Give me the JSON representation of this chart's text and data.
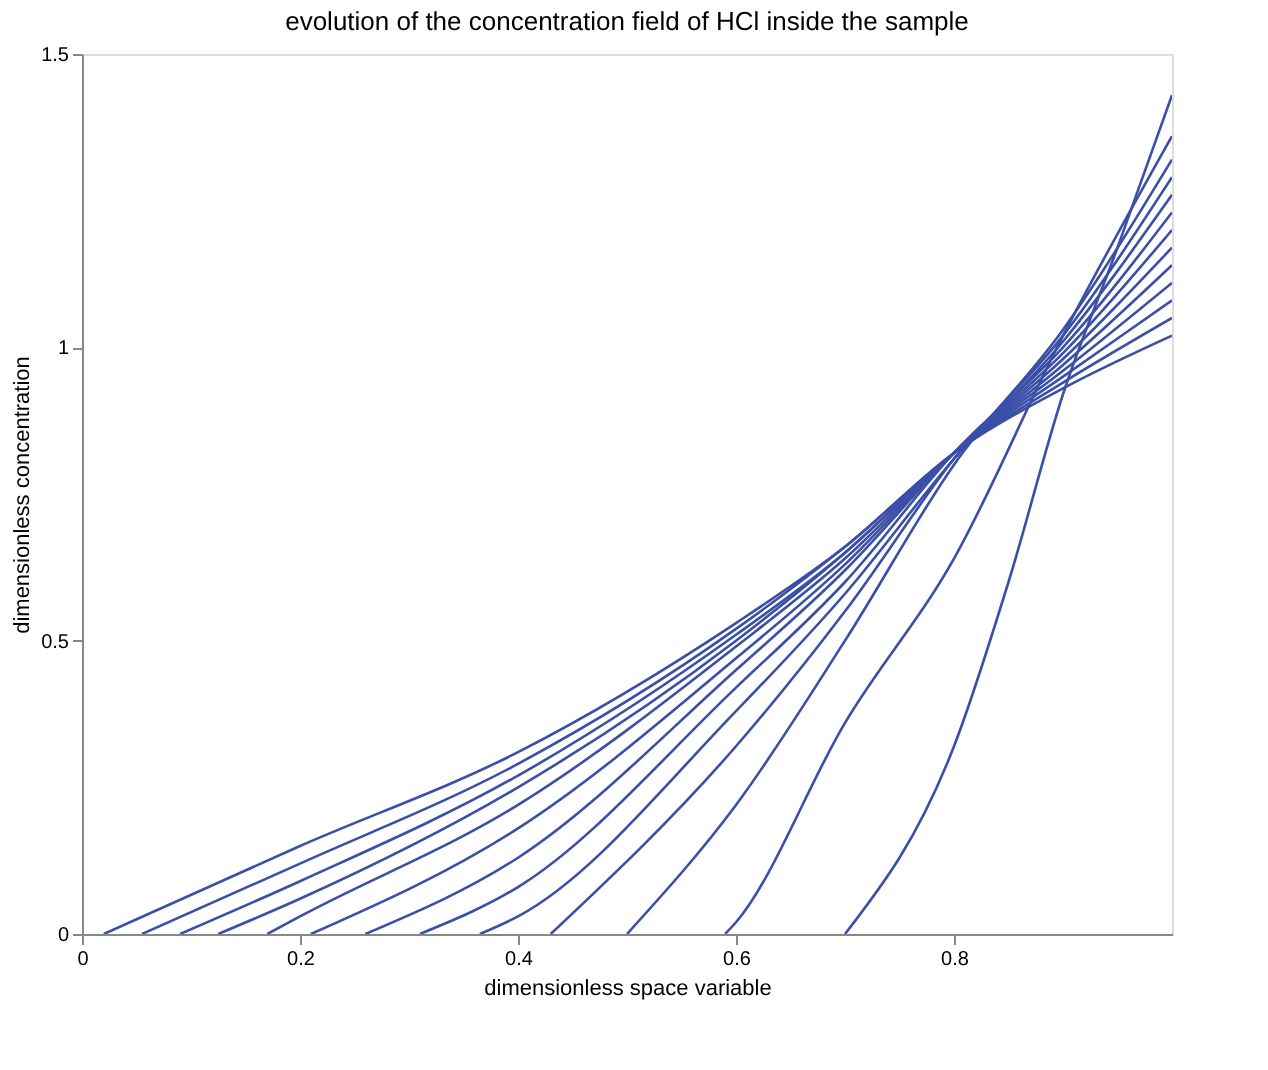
{
  "chart_data": {
    "type": "line",
    "title": "evolution of the concentration field of HCl inside the sample",
    "xlabel": "dimensionless space variable",
    "ylabel": "dimensionless concentration",
    "xlim": [
      0,
      1
    ],
    "ylim": [
      0,
      1.5
    ],
    "xticks": [
      0,
      0.2,
      0.4,
      0.6,
      0.8
    ],
    "yticks": [
      0,
      0.5,
      1,
      1.5
    ],
    "grid": false,
    "legend": false,
    "marker": "none",
    "line_style": "solid",
    "series": [
      {
        "color": "#3a4fa8",
        "x": [
          0.02,
          0.2,
          0.4,
          0.6,
          0.7,
          0.8,
          0.9,
          1.0
        ],
        "values": [
          0,
          0.15,
          0.31,
          0.53,
          0.66,
          0.82,
          0.93,
          1.02
        ]
      },
      {
        "color": "#3a4fa8",
        "x": [
          0.055,
          0.2,
          0.4,
          0.6,
          0.7,
          0.8,
          0.9,
          1.0
        ],
        "values": [
          0,
          0.12,
          0.29,
          0.52,
          0.66,
          0.82,
          0.94,
          1.05
        ]
      },
      {
        "color": "#3a4fa8",
        "x": [
          0.09,
          0.2,
          0.4,
          0.6,
          0.7,
          0.8,
          0.9,
          1.0
        ],
        "values": [
          0,
          0.09,
          0.27,
          0.51,
          0.65,
          0.82,
          0.95,
          1.08
        ]
      },
      {
        "color": "#3a4fa8",
        "x": [
          0.125,
          0.2,
          0.4,
          0.6,
          0.7,
          0.8,
          0.9,
          1.0
        ],
        "values": [
          0,
          0.06,
          0.25,
          0.5,
          0.65,
          0.82,
          0.96,
          1.11
        ]
      },
      {
        "color": "#3a4fa8",
        "x": [
          0.17,
          0.2,
          0.4,
          0.6,
          0.7,
          0.8,
          0.9,
          1.0
        ],
        "values": [
          0,
          0.03,
          0.22,
          0.49,
          0.64,
          0.82,
          0.97,
          1.14
        ]
      },
      {
        "color": "#3a4fa8",
        "x": [
          0.21,
          0.4,
          0.6,
          0.7,
          0.8,
          0.9,
          1.0
        ],
        "values": [
          0,
          0.18,
          0.47,
          0.63,
          0.82,
          0.98,
          1.17
        ]
      },
      {
        "color": "#3a4fa8",
        "x": [
          0.26,
          0.4,
          0.6,
          0.7,
          0.8,
          0.9,
          1.0
        ],
        "values": [
          0,
          0.13,
          0.45,
          0.62,
          0.82,
          0.99,
          1.2
        ]
      },
      {
        "color": "#3a4fa8",
        "x": [
          0.31,
          0.4,
          0.6,
          0.7,
          0.8,
          0.9,
          1.0
        ],
        "values": [
          0,
          0.08,
          0.42,
          0.6,
          0.82,
          1.0,
          1.23
        ]
      },
      {
        "color": "#3a4fa8",
        "x": [
          0.365,
          0.4,
          0.6,
          0.7,
          0.8,
          0.9,
          1.0
        ],
        "values": [
          0,
          0.03,
          0.38,
          0.58,
          0.81,
          1.01,
          1.26
        ]
      },
      {
        "color": "#3a4fa8",
        "x": [
          0.43,
          0.6,
          0.7,
          0.8,
          0.9,
          1.0
        ],
        "values": [
          0,
          0.32,
          0.55,
          0.81,
          1.02,
          1.29
        ]
      },
      {
        "color": "#3a4fa8",
        "x": [
          0.5,
          0.6,
          0.7,
          0.8,
          0.9,
          1.0
        ],
        "values": [
          0,
          0.22,
          0.5,
          0.8,
          1.03,
          1.32
        ]
      },
      {
        "color": "#3a4fa8",
        "x": [
          0.59,
          0.6,
          0.7,
          0.8,
          0.9,
          1.0
        ],
        "values": [
          0,
          0.02,
          0.36,
          0.64,
          1.02,
          1.36
        ]
      },
      {
        "color": "#3a4fa8",
        "x": [
          0.7,
          0.8,
          0.85,
          0.9,
          0.95,
          1.0
        ],
        "values": [
          0,
          0.32,
          0.6,
          0.92,
          1.17,
          1.43
        ]
      }
    ]
  }
}
